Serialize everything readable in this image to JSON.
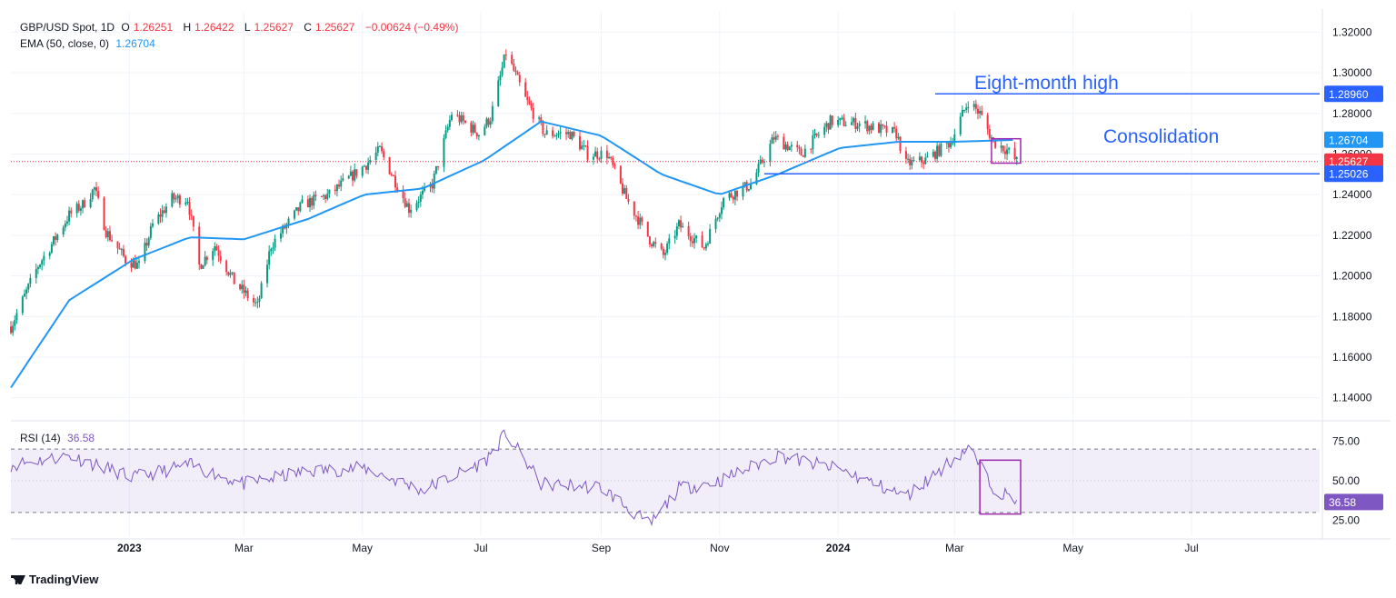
{
  "header": {
    "symbol": "GBP/USD Spot, 1D",
    "o_label": "O",
    "o": "1.26251",
    "h_label": "H",
    "h": "1.26422",
    "l_label": "L",
    "l": "1.25627",
    "c_label": "C",
    "c": "1.25627",
    "change": "−0.00624 (−0.49%)"
  },
  "ema_legend": {
    "label": "EMA (50, close, 0)",
    "value": "1.26704"
  },
  "rsi_legend": {
    "label": "RSI (14)",
    "value": "36.58"
  },
  "annotations": {
    "high_label": "Eight-month high",
    "consolidation_label": "Consolidation"
  },
  "price_tags": {
    "high": "1.28960",
    "ema": "1.26704",
    "last": "1.25627",
    "support": "1.25026",
    "rsi": "36.58"
  },
  "branding": {
    "logo": "TradingView"
  },
  "colors": {
    "up": "#089981",
    "down": "#f23645",
    "ema": "#2196f3",
    "rsi": "#7e57c2",
    "line": "#2962ff"
  },
  "chart_data": {
    "type": "line",
    "title": "GBP/USD Spot, 1D",
    "x_tick_labels": [
      "2023",
      "Mar",
      "May",
      "Jul",
      "Sep",
      "Nov",
      "2024",
      "Mar",
      "May",
      "Jul"
    ],
    "y_tick_labels": [
      "1.14000",
      "1.16000",
      "1.18000",
      "1.20000",
      "1.22000",
      "1.24000",
      "1.26000",
      "1.28000",
      "1.30000",
      "1.32000"
    ],
    "ylim": [
      1.13,
      1.33
    ],
    "rsi_tick_labels": [
      "25.00",
      "50.00",
      "75.00"
    ],
    "rsi_ylim": [
      15,
      85
    ],
    "rsi_bands": [
      70,
      30
    ],
    "horizontal_levels": [
      1.2896,
      1.25026
    ],
    "series": [
      {
        "name": "GBP/USD Spot",
        "values": [
          [
            "2022-11-01",
            1.175
          ],
          [
            "2022-11-15",
            1.205
          ],
          [
            "2022-11-23",
            1.217
          ],
          [
            "2022-12-01",
            1.23
          ],
          [
            "2022-12-08",
            1.235
          ],
          [
            "2022-12-14",
            1.243
          ],
          [
            "2022-12-20",
            1.222
          ],
          [
            "2022-12-30",
            1.208
          ],
          [
            "2023-01-06",
            1.205
          ],
          [
            "2023-01-13",
            1.225
          ],
          [
            "2023-01-23",
            1.238
          ],
          [
            "2023-01-31",
            1.238
          ],
          [
            "2023-02-06",
            1.205
          ],
          [
            "2023-02-14",
            1.215
          ],
          [
            "2023-02-24",
            1.197
          ],
          [
            "2023-03-08",
            1.185
          ],
          [
            "2023-03-15",
            1.215
          ],
          [
            "2023-03-31",
            1.235
          ],
          [
            "2023-04-14",
            1.24
          ],
          [
            "2023-05-03",
            1.255
          ],
          [
            "2023-05-10",
            1.262
          ],
          [
            "2023-05-25",
            1.233
          ],
          [
            "2023-06-06",
            1.245
          ],
          [
            "2023-06-16",
            1.28
          ],
          [
            "2023-06-30",
            1.27
          ],
          [
            "2023-07-06",
            1.278
          ],
          [
            "2023-07-14",
            1.31
          ],
          [
            "2023-07-24",
            1.287
          ],
          [
            "2023-08-03",
            1.27
          ],
          [
            "2023-08-16",
            1.27
          ],
          [
            "2023-08-25",
            1.26
          ],
          [
            "2023-09-04",
            1.26
          ],
          [
            "2023-09-14",
            1.238
          ],
          [
            "2023-09-26",
            1.218
          ],
          [
            "2023-10-03",
            1.21
          ],
          [
            "2023-10-11",
            1.225
          ],
          [
            "2023-10-24",
            1.214
          ],
          [
            "2023-11-03",
            1.238
          ],
          [
            "2023-11-17",
            1.245
          ],
          [
            "2023-11-29",
            1.268
          ],
          [
            "2023-12-13",
            1.26
          ],
          [
            "2023-12-28",
            1.276
          ],
          [
            "2024-01-12",
            1.275
          ],
          [
            "2024-01-31",
            1.27
          ],
          [
            "2024-02-05",
            1.255
          ],
          [
            "2024-02-15",
            1.257
          ],
          [
            "2024-02-28",
            1.266
          ],
          [
            "2024-03-08",
            1.286
          ],
          [
            "2024-03-14",
            1.28
          ],
          [
            "2024-03-21",
            1.266
          ],
          [
            "2024-03-28",
            1.262
          ],
          [
            "2024-04-02",
            1.2563
          ]
        ]
      },
      {
        "name": "EMA (50, close, 0)",
        "values": [
          [
            "2022-11-01",
            1.145
          ],
          [
            "2022-12-01",
            1.188
          ],
          [
            "2023-01-03",
            1.208
          ],
          [
            "2023-02-01",
            1.219
          ],
          [
            "2023-03-01",
            1.218
          ],
          [
            "2023-04-03",
            1.228
          ],
          [
            "2023-05-02",
            1.24
          ],
          [
            "2023-06-01",
            1.243
          ],
          [
            "2023-07-03",
            1.257
          ],
          [
            "2023-08-01",
            1.276
          ],
          [
            "2023-09-01",
            1.269
          ],
          [
            "2023-10-02",
            1.25
          ],
          [
            "2023-11-01",
            1.24
          ],
          [
            "2023-12-01",
            1.25
          ],
          [
            "2024-01-02",
            1.263
          ],
          [
            "2024-02-01",
            1.266
          ],
          [
            "2024-03-01",
            1.266
          ],
          [
            "2024-04-02",
            1.267
          ]
        ]
      },
      {
        "name": "RSI (14)",
        "values": [
          [
            "2022-11-01",
            60
          ],
          [
            "2022-12-01",
            66
          ],
          [
            "2023-01-03",
            52
          ],
          [
            "2023-02-01",
            60
          ],
          [
            "2023-03-01",
            48
          ],
          [
            "2023-04-03",
            56
          ],
          [
            "2023-05-02",
            58
          ],
          [
            "2023-06-01",
            44
          ],
          [
            "2023-07-03",
            62
          ],
          [
            "2023-07-14",
            80
          ],
          [
            "2023-08-01",
            48
          ],
          [
            "2023-09-01",
            46
          ],
          [
            "2023-09-26",
            22
          ],
          [
            "2023-10-11",
            45
          ],
          [
            "2023-11-01",
            50
          ],
          [
            "2023-12-01",
            66
          ],
          [
            "2024-01-02",
            57
          ],
          [
            "2024-02-05",
            40
          ],
          [
            "2024-03-08",
            71
          ],
          [
            "2024-03-21",
            46
          ],
          [
            "2024-04-02",
            36.58
          ]
        ]
      }
    ]
  }
}
